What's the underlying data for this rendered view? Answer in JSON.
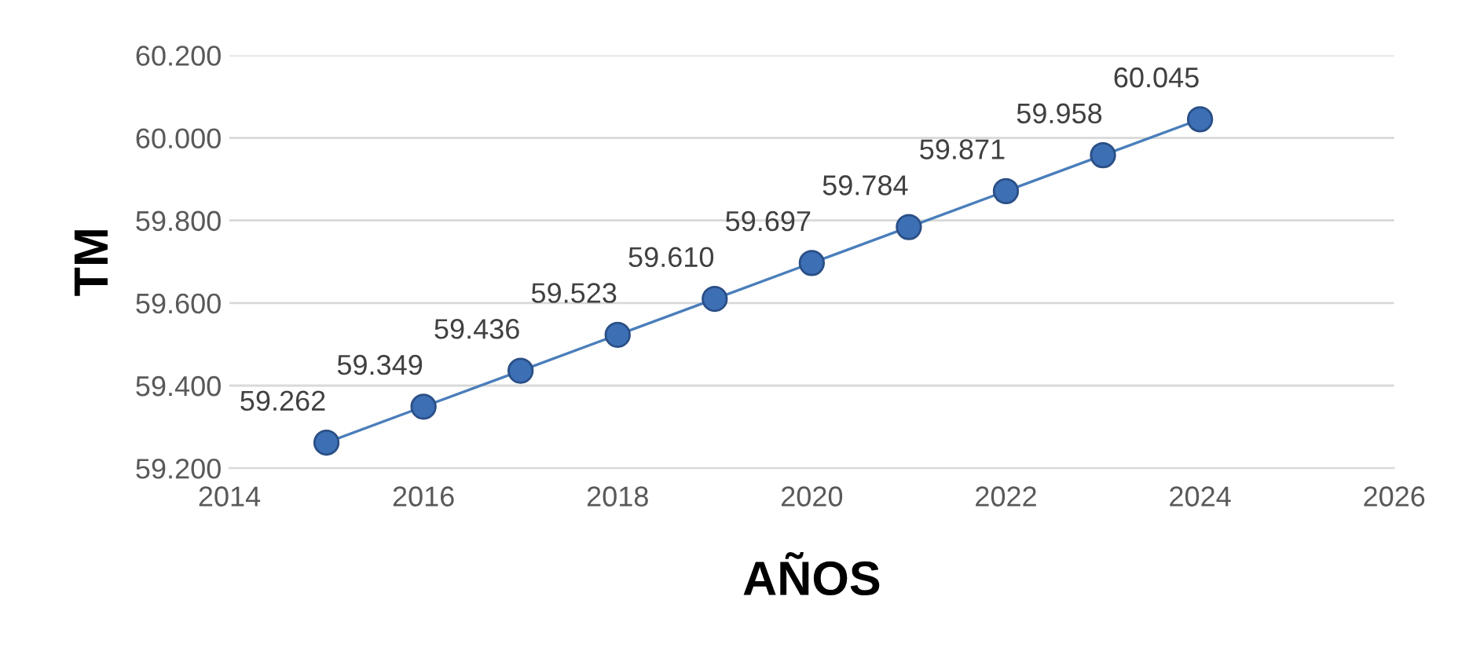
{
  "chart_data": {
    "type": "line",
    "xlabel": "AÑOS",
    "ylabel": "TM",
    "x": [
      2015,
      2016,
      2017,
      2018,
      2019,
      2020,
      2021,
      2022,
      2023,
      2024
    ],
    "series": [
      {
        "color": "#4a7ebb",
        "values": [
          59262,
          59349,
          59436,
          59523,
          59610,
          59697,
          59784,
          59871,
          59958,
          60045
        ],
        "value_labels": [
          "59.262",
          "59.349",
          "59.436",
          "59.523",
          "59.610",
          "59.697",
          "59.784",
          "59.871",
          "59.958",
          "60.045"
        ]
      }
    ],
    "xlim": [
      2014,
      2026
    ],
    "xticks": [
      2014,
      2016,
      2018,
      2020,
      2022,
      2024,
      2026
    ],
    "ylim": [
      59200,
      60200
    ],
    "yticks": [
      {
        "value": 59200,
        "label": "59.200"
      },
      {
        "value": 59400,
        "label": "59.400"
      },
      {
        "value": 59600,
        "label": "59.600"
      },
      {
        "value": 59800,
        "label": "59.800"
      },
      {
        "value": 60000,
        "label": "60.000"
      },
      {
        "value": 60200,
        "label": "60.200"
      }
    ],
    "grid": "y",
    "marker": "circle",
    "line_style": "solid"
  }
}
